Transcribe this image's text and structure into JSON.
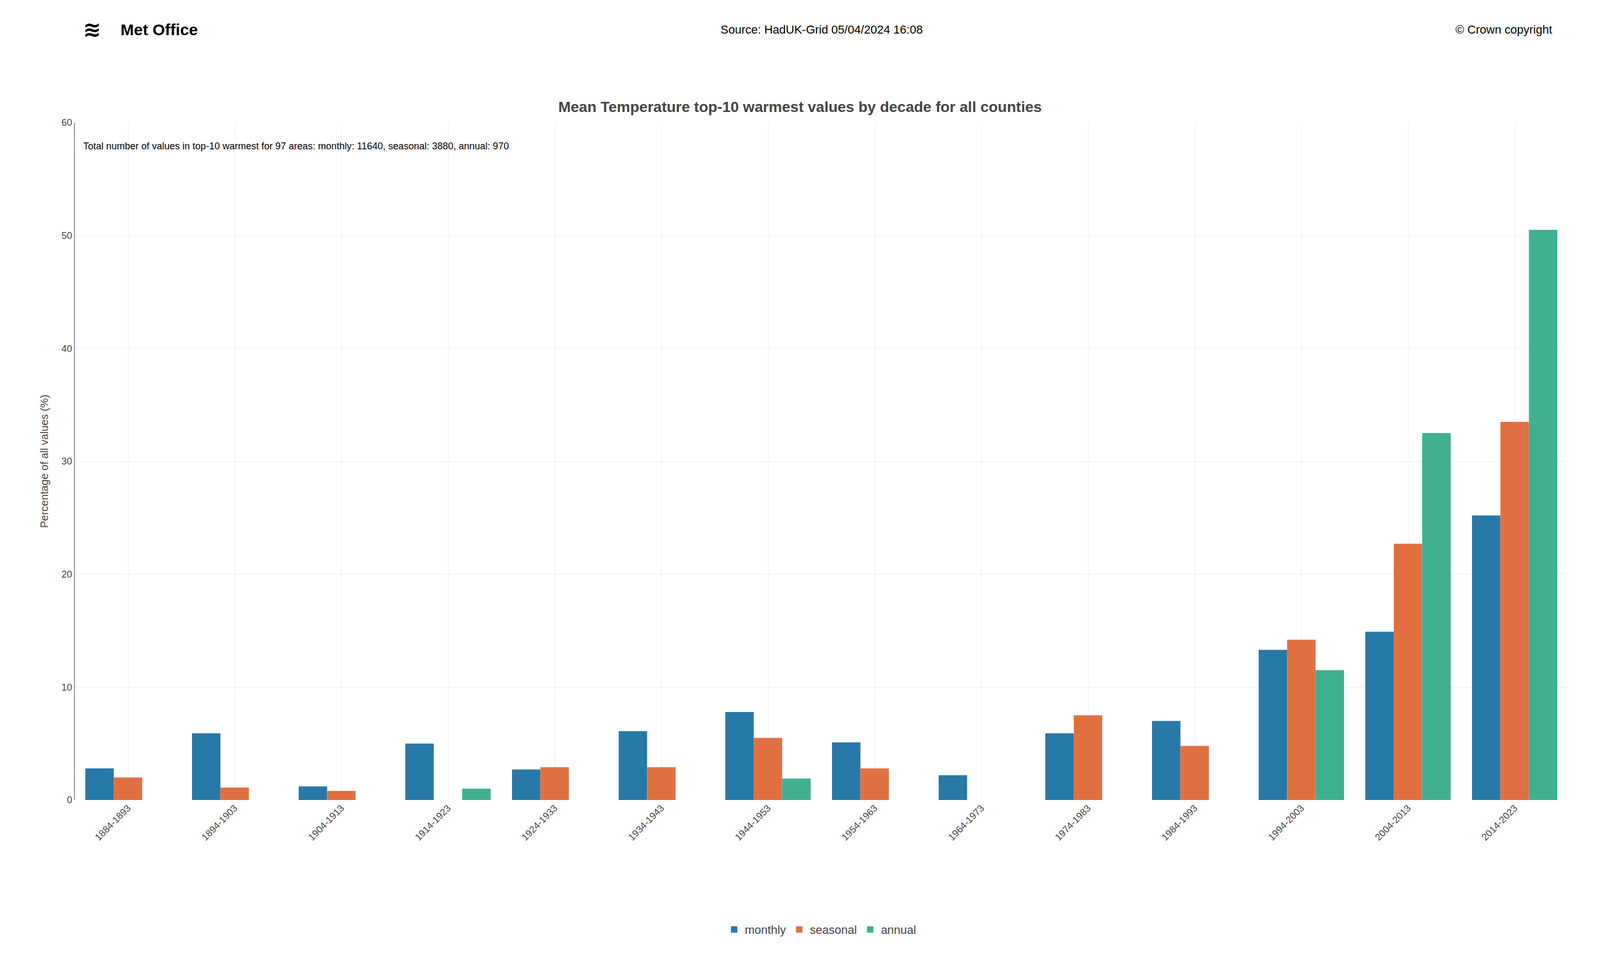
{
  "chart_data": {
    "type": "bar",
    "title": "Mean Temperature top-10 warmest values by decade for all counties",
    "subtitle": "Total number of values in top-10 warmest for 97 areas: monthly: 11640, seasonal: 3880, annual: 970",
    "ylabel": "Percentage of all values (%)",
    "annotations": [
      "≋",
      "Met Office",
      "Source: HadUK-Grid 05/04/2024 16:08",
      "© Crown copyright"
    ],
    "categories": [
      "1884-1893",
      "1894-1903",
      "1904-1913",
      "1914-1923",
      "1924-1933",
      "1934-1943",
      "1944-1953",
      "1954-1963",
      "1964-1973",
      "1974-1983",
      "1984-1993",
      "1994-2003",
      "2004-2013",
      "2014-2023"
    ],
    "series": [
      {
        "name": "monthly",
        "color": "#2878a8",
        "values": [
          2.8,
          5.9,
          1.2,
          5.0,
          2.7,
          6.1,
          7.8,
          5.1,
          2.2,
          5.9,
          7.0,
          13.3,
          14.9,
          25.2
        ]
      },
      {
        "name": "seasonal",
        "color": "#e07040",
        "values": [
          2.0,
          1.1,
          0.8,
          0.0,
          2.9,
          2.9,
          5.5,
          2.8,
          0.0,
          7.5,
          4.8,
          14.2,
          22.7,
          33.5
        ]
      },
      {
        "name": "annual",
        "color": "#40b090",
        "values": [
          0.0,
          0.0,
          0.0,
          1.0,
          0.0,
          0.0,
          1.9,
          0.0,
          0.0,
          0.0,
          0.0,
          11.5,
          32.5,
          50.5
        ]
      }
    ],
    "ylim": [
      0,
      60
    ],
    "yticks": [
      0,
      10,
      20,
      30,
      40,
      50,
      60
    ],
    "grid": true,
    "legend": "bottom"
  }
}
